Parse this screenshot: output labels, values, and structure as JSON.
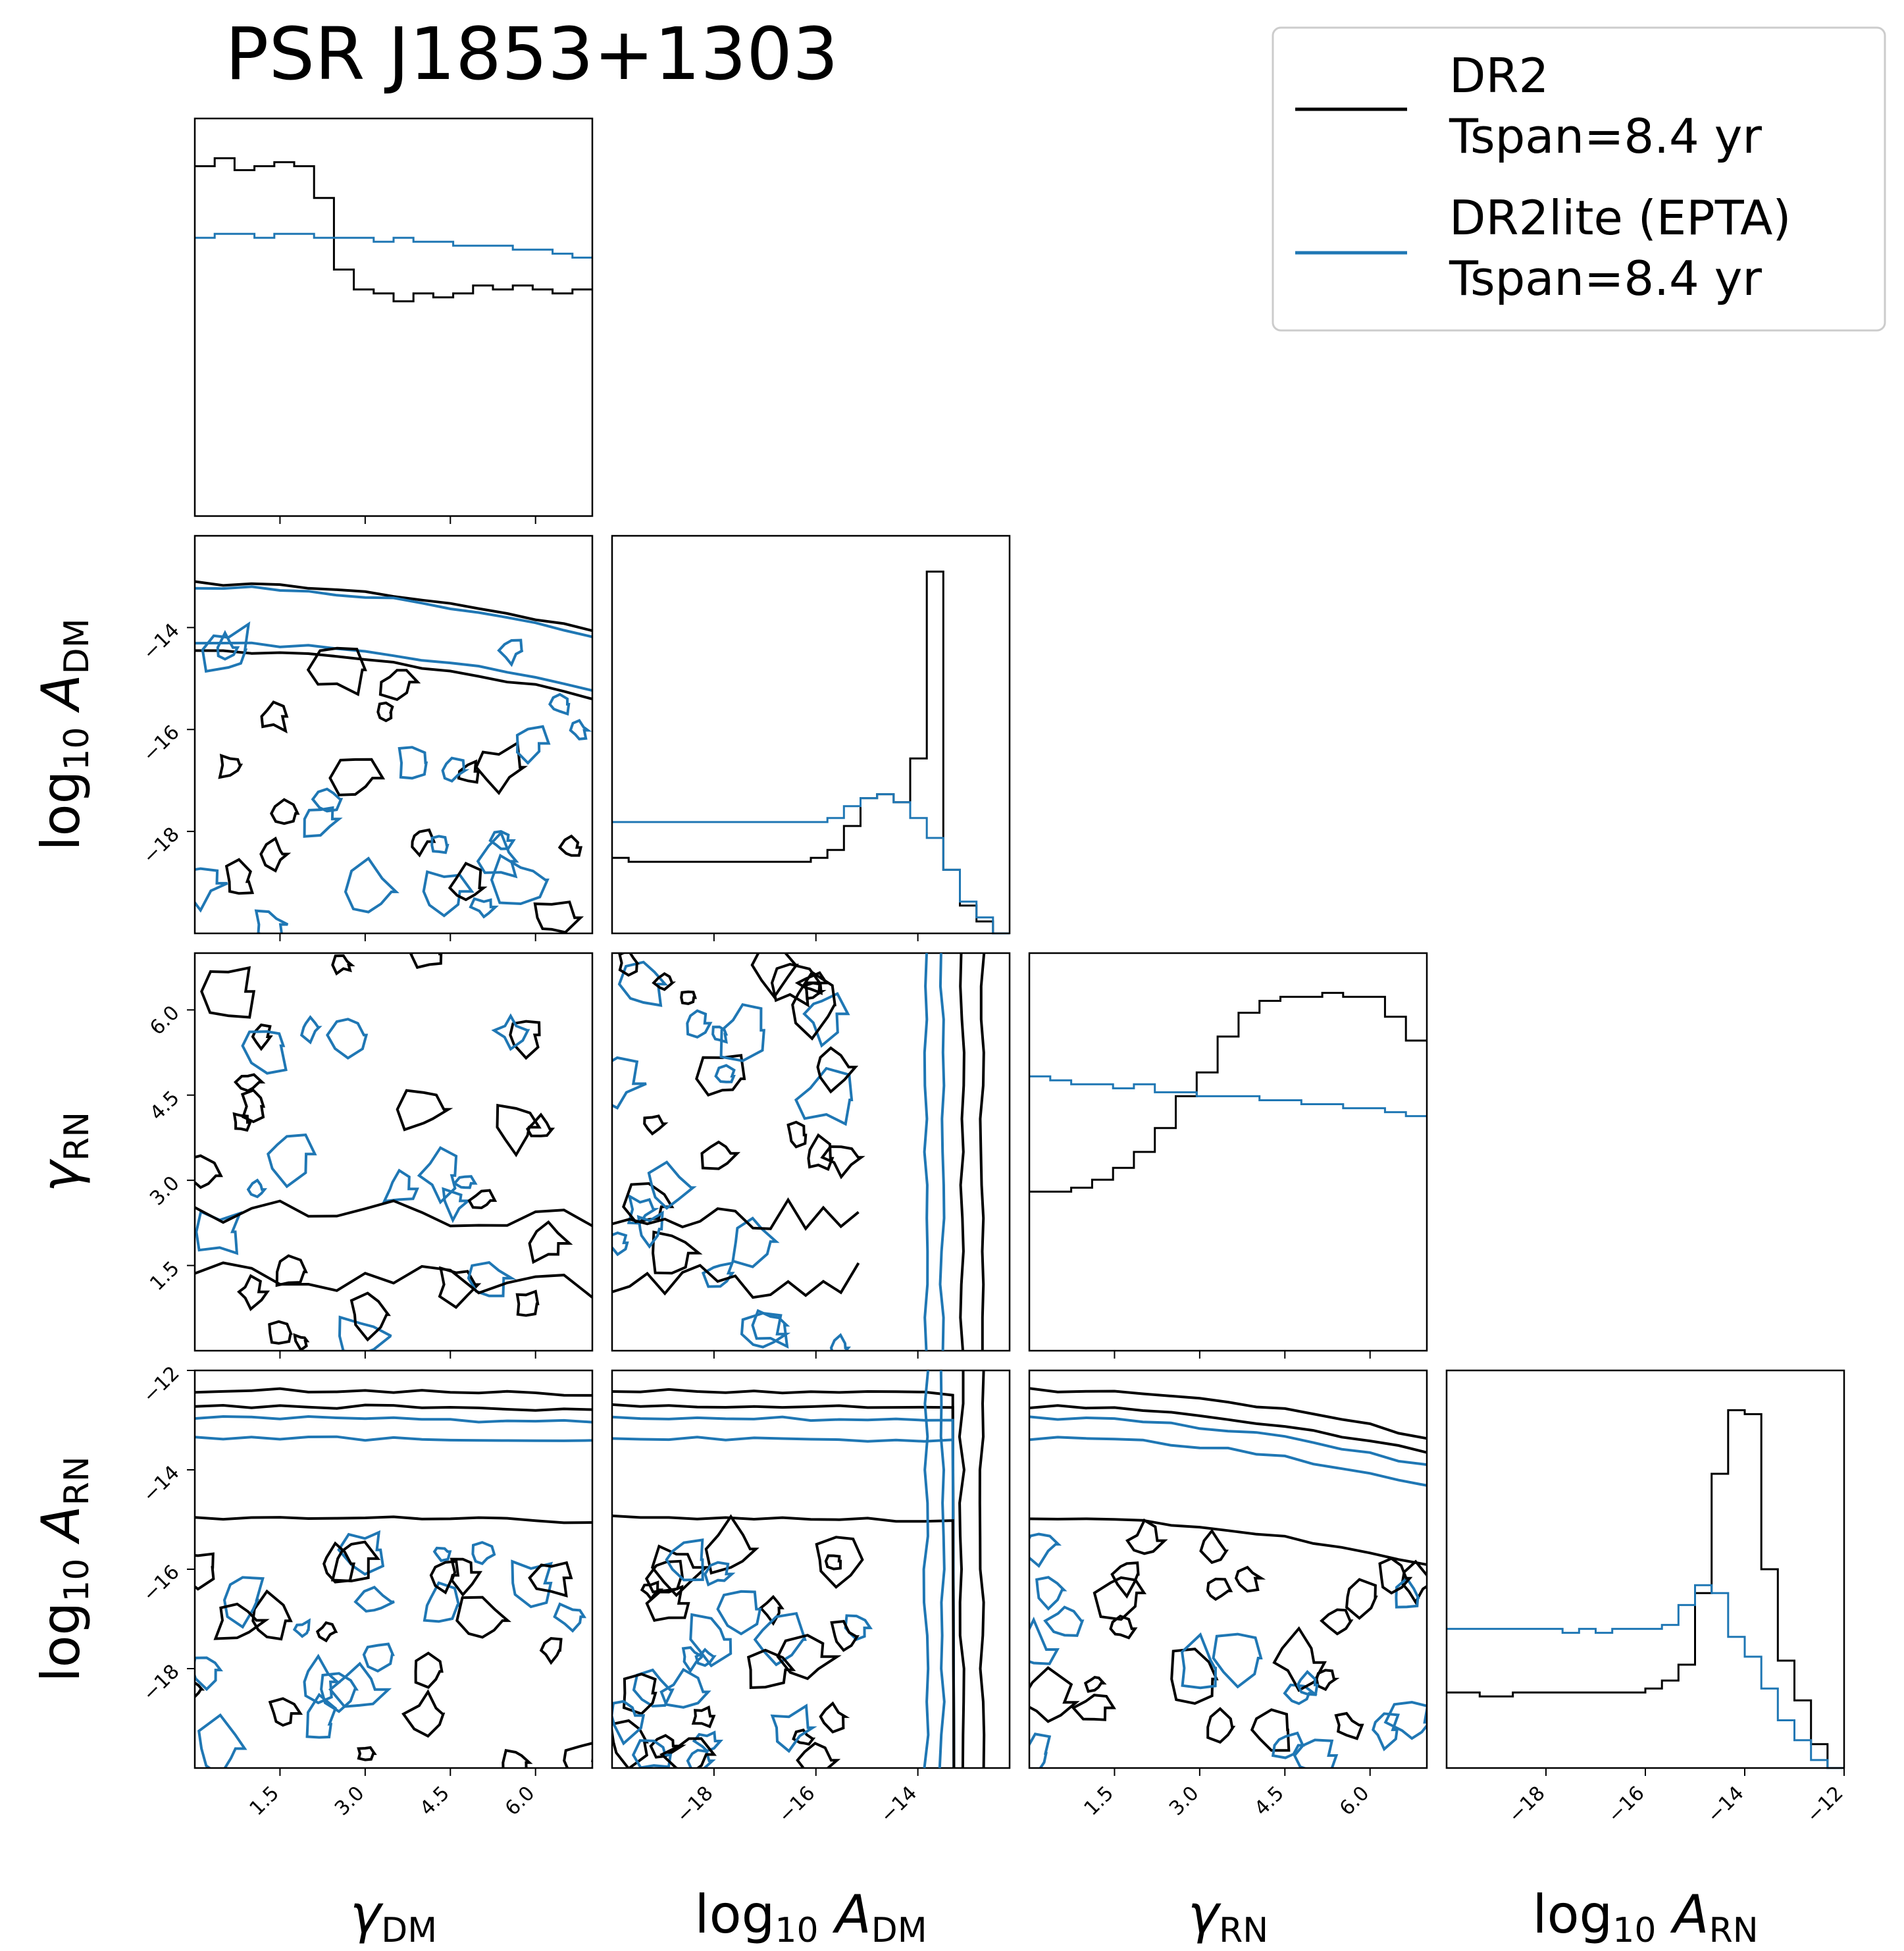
{
  "chart_data": {
    "type": "corner",
    "title": "PSR J1853+1303",
    "parameters": [
      {
        "symbol": "γ",
        "sub": "DM",
        "prefix": "",
        "range": [
          0,
          7
        ],
        "ticks": [
          "1.5",
          "3.0",
          "4.5",
          "6.0"
        ],
        "tick_values": [
          1.5,
          3.0,
          4.5,
          6.0
        ]
      },
      {
        "symbol": "A",
        "sub": "DM",
        "prefix": "log",
        "prefix_sub": "10",
        "range": [
          -20,
          -12.2
        ],
        "ticks": [
          "−18",
          "−16",
          "−14"
        ],
        "tick_values": [
          -18,
          -16,
          -14
        ]
      },
      {
        "symbol": "γ",
        "sub": "RN",
        "prefix": "",
        "range": [
          0,
          7
        ],
        "ticks": [
          "1.5",
          "3.0",
          "4.5",
          "6.0"
        ],
        "tick_values": [
          1.5,
          3.0,
          4.5,
          6.0
        ]
      },
      {
        "symbol": "A",
        "sub": "RN",
        "prefix": "log",
        "prefix_sub": "10",
        "range": [
          -20,
          -12
        ],
        "ticks": [
          "−18",
          "−16",
          "−14",
          "−12"
        ],
        "tick_values": [
          -18,
          -16,
          -14,
          -12
        ]
      }
    ],
    "series": [
      {
        "name": "DR2",
        "name_line2": "Tspan=8.4 yr",
        "color": "#000000",
        "hist": [
          [
            0.88,
            0.9,
            0.87,
            0.88,
            0.89,
            0.88,
            0.8,
            0.62,
            0.57,
            0.56,
            0.54,
            0.56,
            0.55,
            0.56,
            0.58,
            0.57,
            0.58,
            0.57,
            0.56,
            0.57
          ],
          [
            0.19,
            0.18,
            0.18,
            0.18,
            0.18,
            0.18,
            0.18,
            0.18,
            0.18,
            0.18,
            0.18,
            0.18,
            0.19,
            0.21,
            0.27,
            0.34,
            0.35,
            0.33,
            0.44,
            0.91,
            0.16,
            0.07,
            0.03,
            0.0
          ],
          [
            0.4,
            0.4,
            0.41,
            0.43,
            0.46,
            0.5,
            0.56,
            0.64,
            0.7,
            0.79,
            0.85,
            0.88,
            0.89,
            0.89,
            0.9,
            0.89,
            0.89,
            0.84,
            0.78
          ],
          [
            0.19,
            0.19,
            0.18,
            0.18,
            0.19,
            0.19,
            0.19,
            0.19,
            0.19,
            0.19,
            0.19,
            0.19,
            0.2,
            0.22,
            0.26,
            0.44,
            0.74,
            0.9,
            0.89,
            0.5,
            0.27,
            0.17,
            0.06,
            0.0
          ]
        ]
      },
      {
        "name": "DR2lite (EPTA)",
        "name_line2": "Tspan=8.4 yr",
        "color": "#1f77b4",
        "hist": [
          [
            0.7,
            0.71,
            0.71,
            0.7,
            0.71,
            0.71,
            0.7,
            0.7,
            0.7,
            0.69,
            0.7,
            0.69,
            0.69,
            0.68,
            0.68,
            0.68,
            0.67,
            0.67,
            0.66,
            0.65
          ],
          [
            0.28,
            0.28,
            0.28,
            0.28,
            0.28,
            0.28,
            0.28,
            0.28,
            0.28,
            0.28,
            0.28,
            0.28,
            0.28,
            0.29,
            0.32,
            0.34,
            0.35,
            0.33,
            0.29,
            0.24,
            0.16,
            0.08,
            0.04,
            0.0
          ],
          [
            0.69,
            0.68,
            0.67,
            0.67,
            0.66,
            0.67,
            0.65,
            0.65,
            0.64,
            0.64,
            0.64,
            0.63,
            0.63,
            0.62,
            0.62,
            0.61,
            0.61,
            0.6,
            0.59
          ],
          [
            0.35,
            0.35,
            0.35,
            0.35,
            0.35,
            0.35,
            0.35,
            0.34,
            0.35,
            0.34,
            0.35,
            0.35,
            0.35,
            0.36,
            0.41,
            0.46,
            0.44,
            0.33,
            0.28,
            0.2,
            0.12,
            0.07,
            0.02,
            0.0
          ]
        ]
      }
    ],
    "legend": {
      "position": "top-right"
    },
    "grid": false
  }
}
